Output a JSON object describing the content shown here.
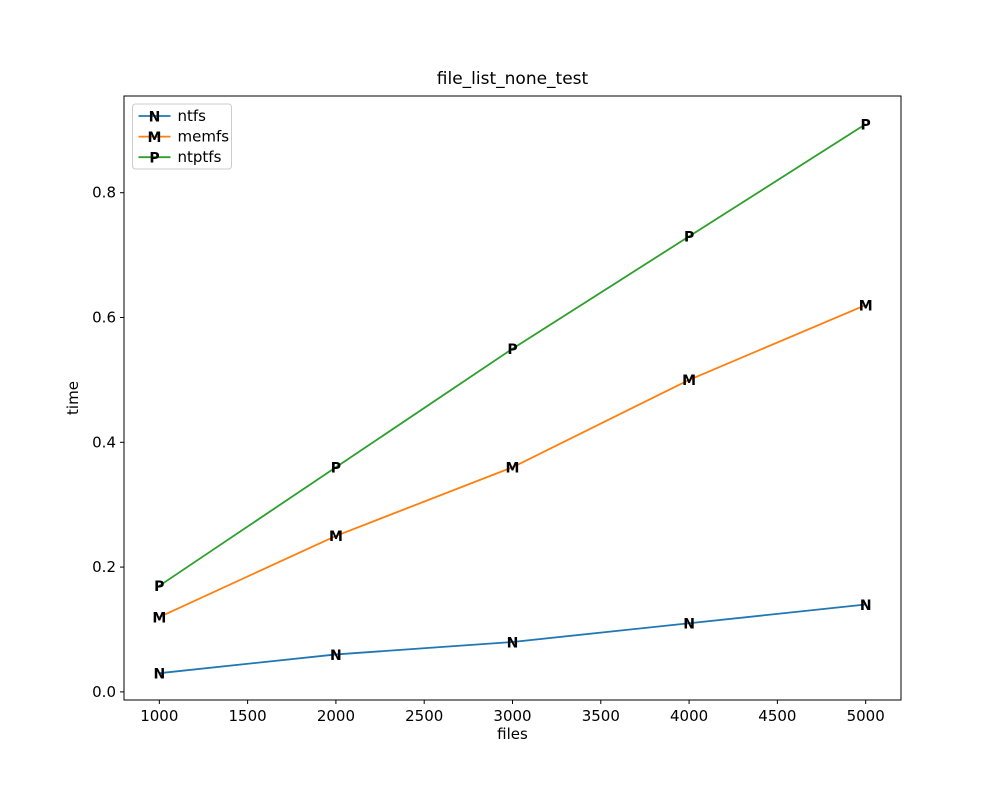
{
  "figure": {
    "background": "#ffffff",
    "spine_color": "#000000",
    "legend_border_color": "#cccccc"
  },
  "chart_data": {
    "type": "line",
    "title": "file_list_none_test",
    "xlabel": "files",
    "ylabel": "time",
    "x": [
      1000,
      2000,
      3000,
      4000,
      5000
    ],
    "series": [
      {
        "name": "ntfs",
        "marker": "N",
        "color": "#1f77b4",
        "values": [
          0.03,
          0.06,
          0.08,
          0.11,
          0.14
        ]
      },
      {
        "name": "memfs",
        "marker": "M",
        "color": "#ff7f0e",
        "values": [
          0.12,
          0.25,
          0.36,
          0.5,
          0.62
        ]
      },
      {
        "name": "ntptfs",
        "marker": "P",
        "color": "#2ca02c",
        "values": [
          0.17,
          0.36,
          0.55,
          0.73,
          0.91
        ]
      }
    ],
    "xlim": [
      800,
      5200
    ],
    "ylim": [
      -0.013,
      0.955
    ],
    "xticks": [
      "1000",
      "1500",
      "2000",
      "2500",
      "3000",
      "3500",
      "4000",
      "4500",
      "5000"
    ],
    "yticks": [
      "0.0",
      "0.2",
      "0.4",
      "0.6",
      "0.8"
    ],
    "grid": false,
    "legend_position": "upper-left"
  }
}
